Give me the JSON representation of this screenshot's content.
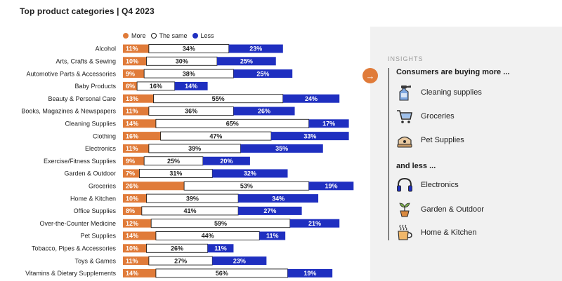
{
  "title": "Top product categories | Q4 2023",
  "legend": [
    {
      "label": "More",
      "color": "#e07b39",
      "key": "more"
    },
    {
      "label": "The same",
      "color": "#ffffff",
      "key": "same"
    },
    {
      "label": "Less",
      "color": "#1f2fc0",
      "key": "less"
    }
  ],
  "chart_data": {
    "type": "bar",
    "orientation": "horizontal",
    "stacked": true,
    "title": "Top product categories | Q4 2023",
    "xlabel": "",
    "ylabel": "",
    "unit": "%",
    "categories": [
      "Alcohol",
      "Arts, Crafts & Sewing",
      "Automotive Parts & Accessories",
      "Baby Products",
      "Beauty & Personal Care",
      "Books, Magazines & Newspapers",
      "Cleaning Supplies",
      "Clothing",
      "Electronics",
      "Exercise/Fitness Supplies",
      "Garden & Outdoor",
      "Groceries",
      "Home & Kitchen",
      "Office Supplies",
      "Over-the-Counter Medicine",
      "Pet Supplies",
      "Tobacco, Pipes & Accessories",
      "Toys & Games",
      "Vitamins & Dietary Supplements"
    ],
    "series": [
      {
        "name": "More",
        "color": "#e07b39",
        "values": [
          11,
          10,
          9,
          6,
          13,
          11,
          14,
          16,
          11,
          9,
          7,
          26,
          10,
          8,
          12,
          14,
          10,
          11,
          14
        ]
      },
      {
        "name": "The same",
        "color": "#ffffff",
        "values": [
          34,
          30,
          38,
          16,
          55,
          36,
          65,
          47,
          39,
          25,
          31,
          53,
          39,
          41,
          59,
          44,
          26,
          27,
          56
        ]
      },
      {
        "name": "Less",
        "color": "#1f2fc0",
        "values": [
          23,
          25,
          25,
          14,
          24,
          26,
          17,
          33,
          35,
          20,
          32,
          19,
          34,
          27,
          21,
          11,
          11,
          23,
          19
        ]
      }
    ],
    "legend_position": "top"
  },
  "insights": {
    "heading": "INSIGHTS",
    "arrow_glyph": "→",
    "more_title": "Consumers are buying more ...",
    "more_items": [
      {
        "label": "Cleaning supplies",
        "icon": "spray-bottle-icon"
      },
      {
        "label": "Groceries",
        "icon": "shopping-cart-icon"
      },
      {
        "label": "Pet Supplies",
        "icon": "pet-bed-icon"
      }
    ],
    "less_title": "and less ...",
    "less_items": [
      {
        "label": "Electronics",
        "icon": "headphones-icon"
      },
      {
        "label": "Garden & Outdoor",
        "icon": "potted-plant-icon"
      },
      {
        "label": "Home & Kitchen",
        "icon": "steaming-mug-icon"
      }
    ]
  }
}
